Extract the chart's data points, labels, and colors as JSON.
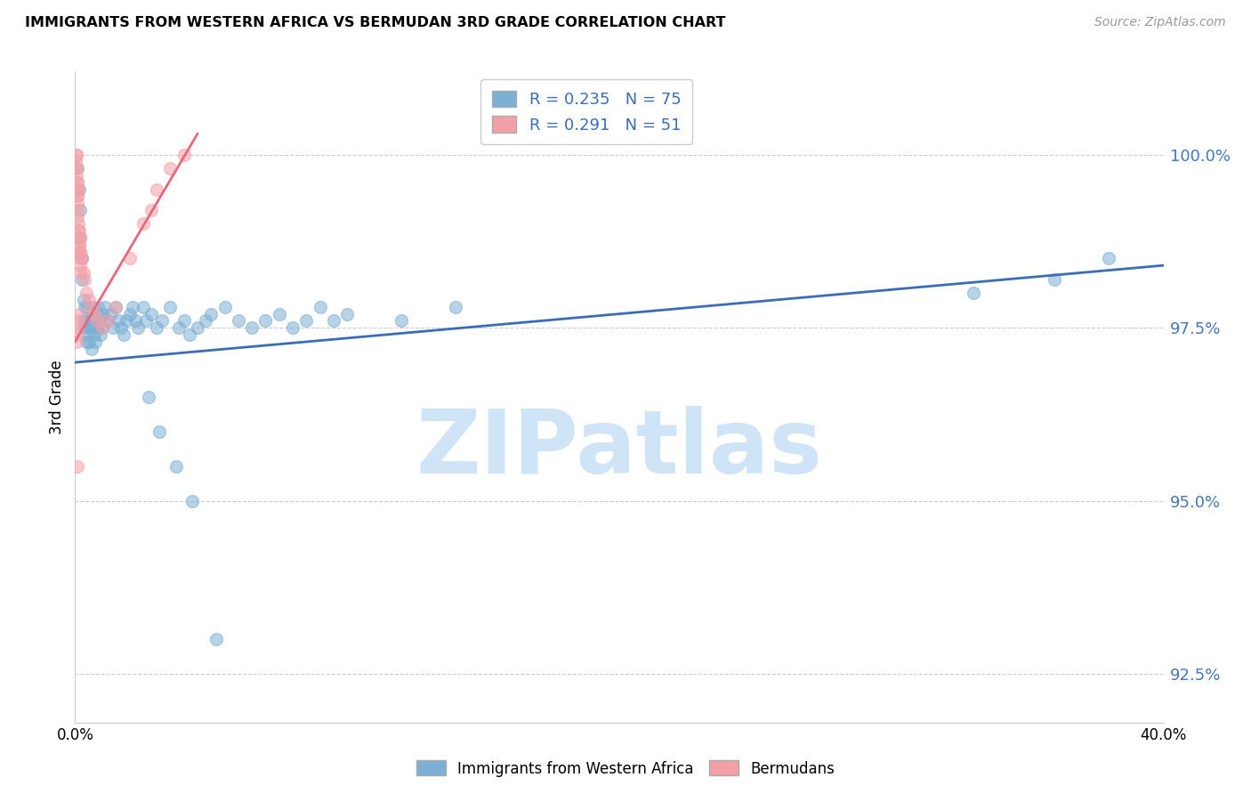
{
  "title": "IMMIGRANTS FROM WESTERN AFRICA VS BERMUDAN 3RD GRADE CORRELATION CHART",
  "source": "Source: ZipAtlas.com",
  "ylabel": "3rd Grade",
  "y_tick_values": [
    100.0,
    97.5,
    95.0,
    92.5
  ],
  "xlim": [
    0.0,
    40.0
  ],
  "ylim": [
    91.8,
    101.2
  ],
  "blue_R": 0.235,
  "blue_N": 75,
  "pink_R": 0.291,
  "pink_N": 51,
  "blue_color": "#7BAFD4",
  "pink_color": "#F4A0A8",
  "blue_line_color": "#3A6DB5",
  "pink_line_color": "#E8687A",
  "watermark": "ZIPatlas",
  "watermark_color": "#D0E4F7",
  "blue_scatter_x": [
    0.1,
    0.15,
    0.2,
    0.2,
    0.25,
    0.25,
    0.3,
    0.3,
    0.35,
    0.35,
    0.4,
    0.4,
    0.45,
    0.45,
    0.5,
    0.5,
    0.55,
    0.6,
    0.6,
    0.65,
    0.7,
    0.7,
    0.75,
    0.8,
    0.8,
    0.85,
    0.9,
    0.95,
    1.0,
    1.0,
    1.1,
    1.2,
    1.3,
    1.4,
    1.5,
    1.6,
    1.7,
    1.8,
    1.9,
    2.0,
    2.1,
    2.2,
    2.3,
    2.5,
    2.6,
    2.8,
    3.0,
    3.2,
    3.5,
    3.8,
    4.0,
    4.2,
    4.5,
    4.8,
    5.0,
    5.5,
    6.0,
    6.5,
    7.0,
    7.5,
    8.0,
    8.5,
    9.0,
    9.5,
    10.0,
    12.0,
    14.0,
    33.0,
    36.0,
    38.0,
    2.7,
    3.1,
    3.7,
    4.3,
    5.2
  ],
  "blue_scatter_y": [
    99.8,
    99.5,
    99.2,
    98.8,
    98.5,
    98.2,
    97.9,
    97.6,
    97.8,
    97.5,
    97.3,
    97.6,
    97.4,
    97.8,
    97.5,
    97.3,
    97.6,
    97.2,
    97.5,
    97.8,
    97.4,
    97.6,
    97.3,
    97.7,
    97.5,
    97.8,
    97.6,
    97.4,
    97.5,
    97.7,
    97.8,
    97.6,
    97.7,
    97.5,
    97.8,
    97.6,
    97.5,
    97.4,
    97.6,
    97.7,
    97.8,
    97.6,
    97.5,
    97.8,
    97.6,
    97.7,
    97.5,
    97.6,
    97.8,
    97.5,
    97.6,
    97.4,
    97.5,
    97.6,
    97.7,
    97.8,
    97.6,
    97.5,
    97.6,
    97.7,
    97.5,
    97.6,
    97.8,
    97.6,
    97.7,
    97.6,
    97.8,
    98.0,
    98.2,
    98.5,
    96.5,
    96.0,
    95.5,
    95.0,
    93.0
  ],
  "pink_scatter_x": [
    0.02,
    0.03,
    0.04,
    0.05,
    0.05,
    0.06,
    0.06,
    0.07,
    0.07,
    0.08,
    0.08,
    0.09,
    0.09,
    0.1,
    0.1,
    0.11,
    0.12,
    0.13,
    0.14,
    0.15,
    0.15,
    0.16,
    0.17,
    0.18,
    0.18,
    0.19,
    0.2,
    0.2,
    0.25,
    0.3,
    0.35,
    0.4,
    0.5,
    0.6,
    0.7,
    0.8,
    1.0,
    1.2,
    1.5,
    2.0,
    2.5,
    2.8,
    3.0,
    3.5,
    4.0,
    0.05,
    0.08,
    0.1,
    0.12,
    0.15,
    0.08
  ],
  "pink_scatter_y": [
    99.9,
    99.8,
    100.0,
    100.0,
    99.7,
    99.5,
    99.8,
    99.6,
    99.4,
    99.3,
    99.6,
    99.5,
    99.2,
    99.4,
    99.1,
    99.0,
    98.9,
    98.8,
    98.7,
    98.6,
    98.9,
    98.7,
    98.6,
    98.5,
    98.8,
    98.4,
    98.3,
    98.6,
    98.5,
    98.3,
    98.2,
    98.0,
    97.9,
    97.8,
    97.7,
    97.6,
    97.5,
    97.6,
    97.8,
    98.5,
    99.0,
    99.2,
    99.5,
    99.8,
    100.0,
    97.3,
    97.5,
    97.4,
    97.6,
    97.7,
    95.5
  ],
  "blue_trendline_x": [
    0.0,
    40.0
  ],
  "blue_trendline_y": [
    97.0,
    98.4
  ],
  "pink_trendline_x": [
    0.0,
    4.5
  ],
  "pink_trendline_y": [
    97.3,
    100.3
  ]
}
